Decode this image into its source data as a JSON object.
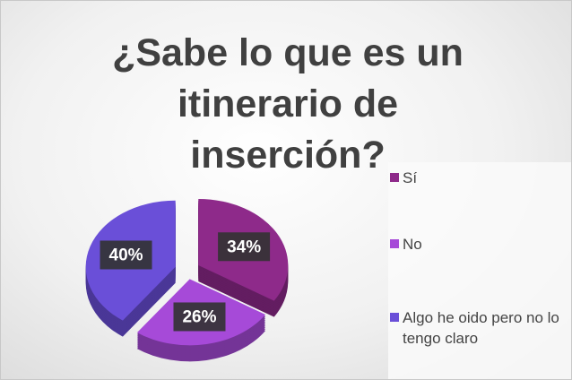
{
  "chart_data": {
    "type": "pie",
    "title": "¿Sabe lo que es un itinerario de inserción?",
    "categories": [
      "Sí",
      "No",
      "Algo he oido pero no lo tengo claro"
    ],
    "values": [
      34,
      26,
      40
    ],
    "value_labels": [
      "34%",
      "26%",
      "40%"
    ],
    "colors": [
      "#8e2a8a",
      "#a64ad8",
      "#6a4fd8"
    ],
    "legend": "right"
  }
}
